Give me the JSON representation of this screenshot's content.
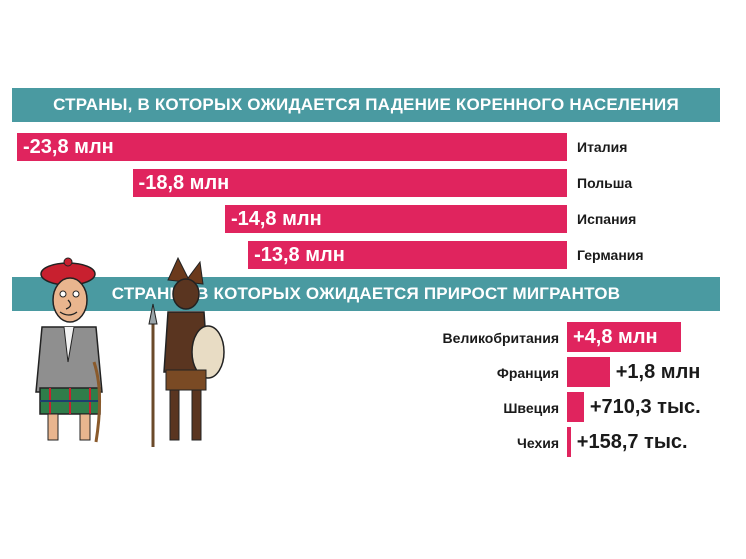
{
  "colors": {
    "banner": "#4a9aa1",
    "bar": "#e0245e",
    "text_dark": "#1a1a1a"
  },
  "chart_data": [
    {
      "type": "bar",
      "orientation": "horizontal",
      "title": "СТРАНЫ, В КОТОРЫХ ОЖИДАЕТСЯ ПАДЕНИЕ КОРЕННОГО НАСЕЛЕНИЯ",
      "categories": [
        "Италия",
        "Польша",
        "Испания",
        "Германия"
      ],
      "values": [
        -23.8,
        -18.8,
        -14.8,
        -13.8
      ],
      "value_labels": [
        "-23,8 млн",
        "-18,8 млн",
        "-14,8 млн",
        "-13,8 млн"
      ],
      "unit": "млн",
      "xlim": [
        -23.8,
        0
      ]
    },
    {
      "type": "bar",
      "orientation": "horizontal",
      "title": "СТРАНЫ, В КОТОРЫХ ОЖИДАЕТСЯ ПРИРОСТ МИГРАНТОВ",
      "categories": [
        "Великобритания",
        "Франция",
        "Швеция",
        "Чехия"
      ],
      "values": [
        4.8,
        1.8,
        0.7103,
        0.1587
      ],
      "value_labels": [
        "+4,8 млн",
        "+1,8 млн",
        "+710,3 тыс.",
        "+158,7 тыс."
      ],
      "unit": "млн",
      "xlim": [
        0,
        4.8
      ]
    }
  ]
}
